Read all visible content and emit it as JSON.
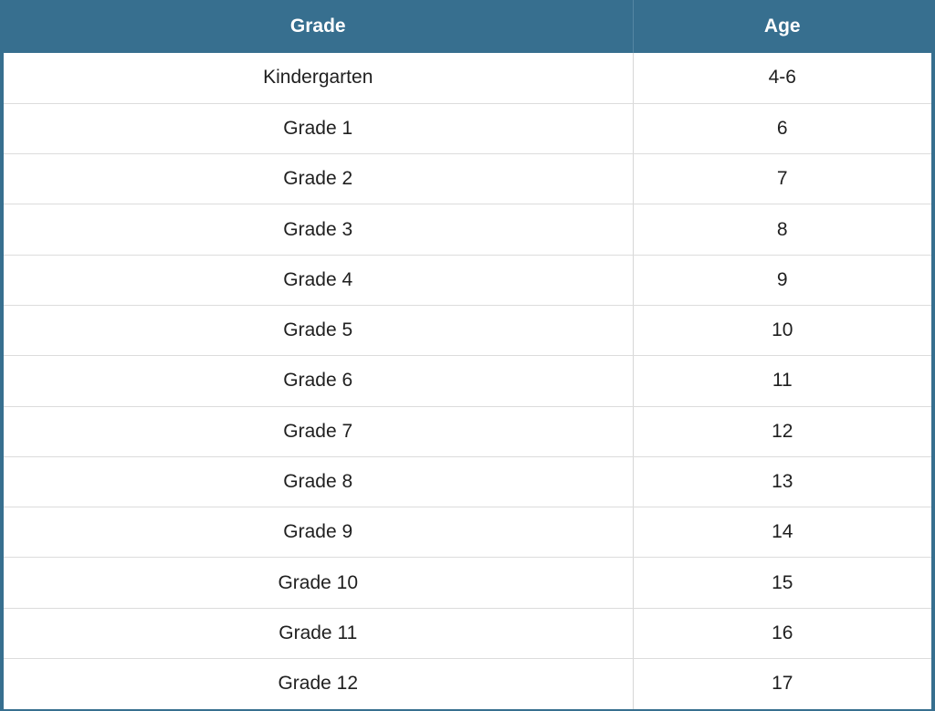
{
  "table": {
    "headers": {
      "grade": "Grade",
      "age": "Age"
    },
    "rows": [
      {
        "grade": "Kindergarten",
        "age": "4-6"
      },
      {
        "grade": "Grade 1",
        "age": "6"
      },
      {
        "grade": "Grade 2",
        "age": "7"
      },
      {
        "grade": "Grade 3",
        "age": "8"
      },
      {
        "grade": "Grade 4",
        "age": "9"
      },
      {
        "grade": "Grade 5",
        "age": "10"
      },
      {
        "grade": "Grade 6",
        "age": "11"
      },
      {
        "grade": "Grade 7",
        "age": "12"
      },
      {
        "grade": "Grade 8",
        "age": "13"
      },
      {
        "grade": "Grade 9",
        "age": "14"
      },
      {
        "grade": "Grade 10",
        "age": "15"
      },
      {
        "grade": "Grade 11",
        "age": "16"
      },
      {
        "grade": "Grade 12",
        "age": "17"
      }
    ]
  },
  "colors": {
    "header_background": "#376f8f",
    "header_text": "#ffffff",
    "cell_background": "#ffffff",
    "cell_text": "#1f1f1f"
  }
}
